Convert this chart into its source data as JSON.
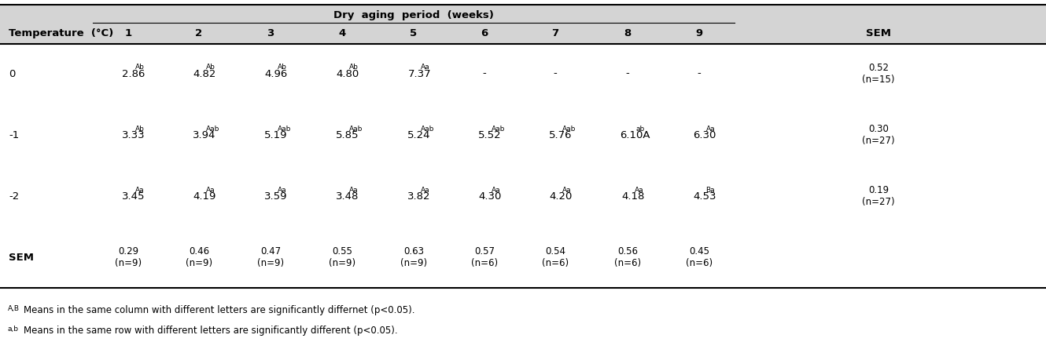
{
  "header_bg": "#d4d4d4",
  "week_cols": [
    "1",
    "2",
    "3",
    "4",
    "5",
    "6",
    "7",
    "8",
    "9"
  ],
  "cell_main": {
    "0": [
      "2.86",
      "4.82",
      "4.96",
      "4.80",
      "7.37",
      "-",
      "-",
      "-",
      "-"
    ],
    "-1": [
      "3.33",
      "3.94",
      "5.19",
      "5.85",
      "5.24",
      "5.52",
      "5.76",
      "6.10A",
      "6.30"
    ],
    "-2": [
      "3.45",
      "4.19",
      "3.59",
      "3.48",
      "3.82",
      "4.30",
      "4.20",
      "4.18",
      "4.53"
    ],
    "SEM": [
      "0.29\n(n=9)",
      "0.46\n(n=9)",
      "0.47\n(n=9)",
      "0.55\n(n=9)",
      "0.63\n(n=9)",
      "0.57\n(n=6)",
      "0.54\n(n=6)",
      "0.56\n(n=6)",
      "0.45\n(n=6)"
    ]
  },
  "cell_super": {
    "0": [
      "Ab",
      "Ab",
      "Ab",
      "Ab",
      "Aa",
      "",
      "",
      "",
      ""
    ],
    "-1": [
      "Ab",
      "Aab",
      "Aab",
      "Aab",
      "Aab",
      "Aab",
      "Aab",
      "ab",
      "Aa"
    ],
    "-2": [
      "Aa",
      "Aa",
      "Aa",
      "Aa",
      "Aa",
      "Aa",
      "Aa",
      "Aa",
      "Ba"
    ]
  },
  "sem_col": {
    "0": "0.52\n(n=15)",
    "-1": "0.30\n(n=27)",
    "-2": "0.19\n(n=27)",
    "SEM": ""
  },
  "temp_rows": [
    "0",
    "-1",
    "-2",
    "SEM"
  ]
}
